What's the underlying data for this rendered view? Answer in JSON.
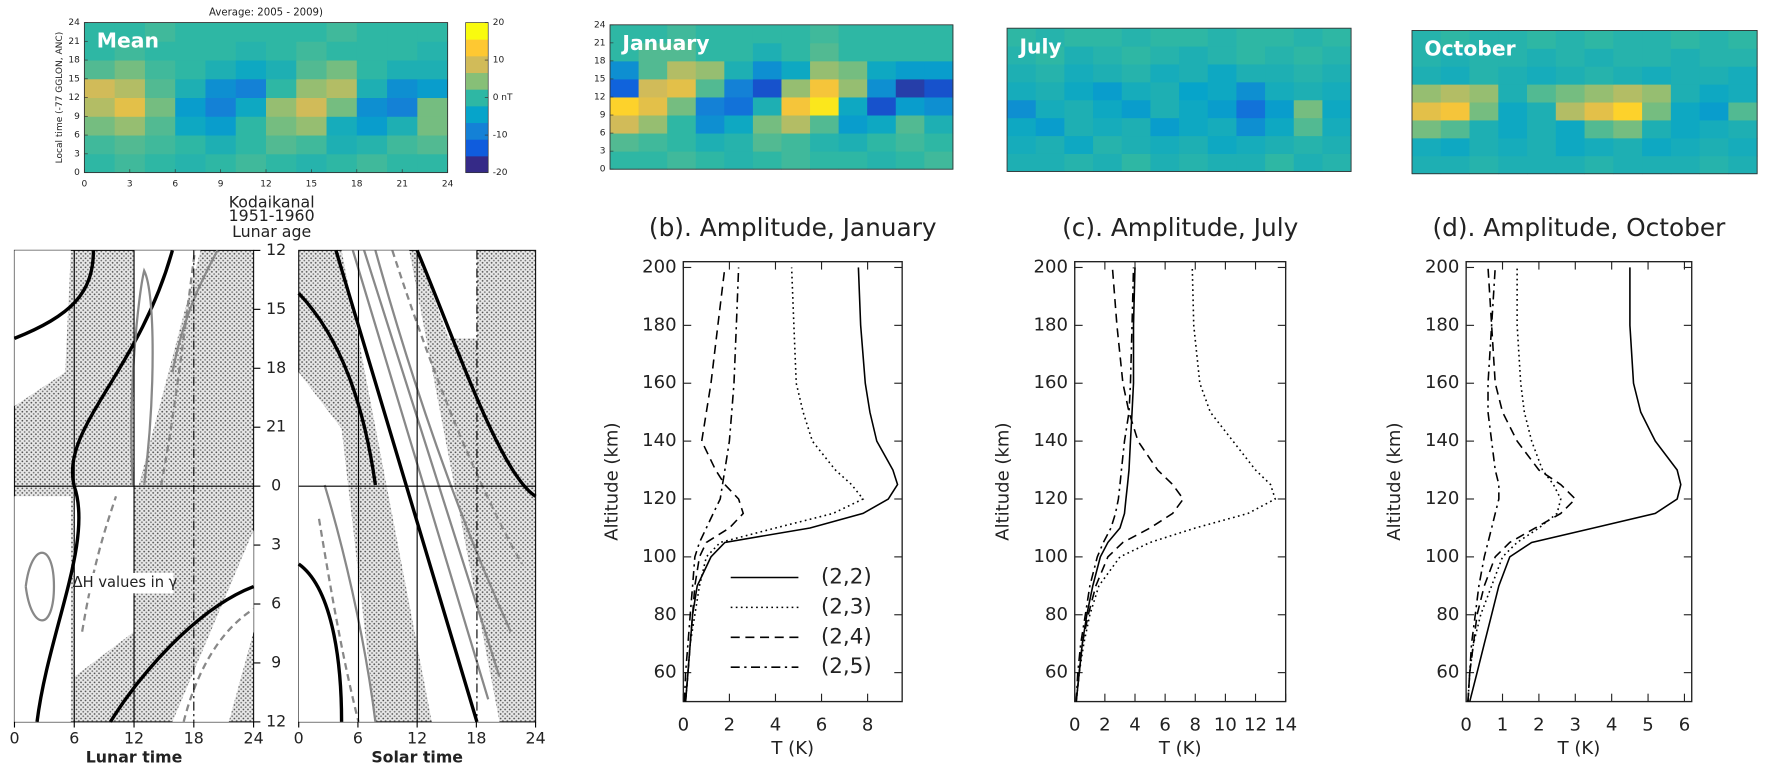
{
  "chart_data": [
    {
      "type": "heatmap",
      "title": "Average: 2005 - 2009)",
      "label": "Mean",
      "ylabel": "Local time (-77 GGLON, ANC)",
      "xlim": [
        0,
        24
      ],
      "ylim": [
        0,
        24
      ],
      "xticks": [
        0,
        3,
        6,
        9,
        12,
        15,
        18,
        21,
        24
      ],
      "yticks": [
        0,
        3,
        6,
        9,
        12,
        15,
        18,
        21,
        24
      ],
      "xbins": [
        0,
        2,
        4,
        6,
        8,
        10,
        12,
        14,
        16,
        18,
        20,
        22,
        24
      ],
      "ybins": [
        0,
        3,
        6,
        9,
        12,
        15,
        18,
        21,
        24
      ],
      "z": [
        [
          0,
          1,
          0,
          -1,
          0,
          1,
          0,
          -1,
          0,
          1,
          0,
          0
        ],
        [
          1,
          2,
          1,
          0,
          -2,
          0,
          2,
          1,
          -2,
          -1,
          1,
          2
        ],
        [
          4,
          6,
          2,
          -4,
          -6,
          0,
          4,
          6,
          -3,
          -6,
          -2,
          4
        ],
        [
          8,
          12,
          4,
          -6,
          -10,
          -4,
          6,
          10,
          4,
          -8,
          -10,
          4
        ],
        [
          10,
          8,
          2,
          -2,
          -8,
          -10,
          0,
          6,
          8,
          -2,
          -8,
          -6
        ],
        [
          2,
          4,
          1,
          0,
          -2,
          -4,
          -2,
          2,
          4,
          0,
          -2,
          -2
        ],
        [
          0,
          1,
          0,
          0,
          0,
          -1,
          0,
          1,
          0,
          0,
          0,
          -1
        ],
        [
          0,
          0,
          1,
          0,
          0,
          0,
          0,
          0,
          1,
          0,
          0,
          0
        ]
      ],
      "zlim": [
        -20,
        20
      ],
      "colorbar_ticks": [
        20,
        10,
        {
          "value": 0,
          "label": "0 nT"
        },
        -10,
        -20
      ],
      "colormap": [
        "#352a87",
        "#0f5cdd",
        "#1481d6",
        "#06a4ca",
        "#2eb7a4",
        "#87bf77",
        "#d1bb59",
        "#fec832",
        "#f9fb0e"
      ]
    },
    {
      "type": "heatmap",
      "label": "January",
      "xlim": [
        0,
        24
      ],
      "ylim": [
        0,
        24
      ],
      "yticks": [
        0,
        3,
        6,
        9,
        12,
        15,
        18,
        21,
        24
      ],
      "xbins": [
        0,
        2,
        4,
        6,
        8,
        10,
        12,
        14,
        16,
        18,
        20,
        22,
        24
      ],
      "ybins": [
        0,
        3,
        6,
        9,
        12,
        15,
        18,
        21,
        24
      ],
      "z": [
        [
          0,
          0,
          1,
          0,
          -1,
          0,
          1,
          0,
          0,
          -1,
          0,
          1
        ],
        [
          2,
          1,
          0,
          -2,
          -1,
          2,
          1,
          -1,
          -2,
          0,
          1,
          0
        ],
        [
          10,
          6,
          0,
          -8,
          -4,
          4,
          8,
          2,
          -6,
          -4,
          2,
          -2
        ],
        [
          16,
          12,
          4,
          -10,
          -12,
          -2,
          14,
          18,
          -4,
          -16,
          -6,
          -8
        ],
        [
          -14,
          10,
          12,
          2,
          -10,
          -16,
          6,
          14,
          6,
          -8,
          -18,
          -16
        ],
        [
          -8,
          2,
          8,
          6,
          -2,
          -8,
          -4,
          6,
          4,
          -4,
          -6,
          -6
        ],
        [
          0,
          2,
          2,
          0,
          0,
          -2,
          0,
          2,
          0,
          0,
          0,
          0
        ],
        [
          0,
          0,
          1,
          0,
          0,
          0,
          0,
          1,
          0,
          0,
          0,
          0
        ]
      ],
      "zlim": [
        -20,
        20
      ],
      "colormap": [
        "#352a87",
        "#0f5cdd",
        "#1481d6",
        "#06a4ca",
        "#2eb7a4",
        "#87bf77",
        "#d1bb59",
        "#fec832",
        "#f9fb0e"
      ]
    },
    {
      "type": "heatmap",
      "label": "July",
      "xlim": [
        0,
        24
      ],
      "ylim": [
        0,
        24
      ],
      "xbins": [
        0,
        2,
        4,
        6,
        8,
        10,
        12,
        14,
        16,
        18,
        20,
        22,
        24
      ],
      "ybins": [
        0,
        3,
        6,
        9,
        12,
        15,
        18,
        21,
        24
      ],
      "z": [
        [
          -2,
          -2,
          -1,
          -2,
          0,
          -2,
          -1,
          -2,
          -2,
          0,
          -2,
          -1
        ],
        [
          -3,
          -2,
          -4,
          -1,
          -2,
          -3,
          -2,
          -4,
          -3,
          -2,
          -1,
          -2
        ],
        [
          -4,
          -6,
          -2,
          -3,
          -2,
          -6,
          -4,
          -3,
          -8,
          -4,
          2,
          -3
        ],
        [
          -8,
          -3,
          -2,
          -4,
          -6,
          -2,
          -4,
          -6,
          -12,
          -6,
          4,
          -4
        ],
        [
          -3,
          -2,
          -4,
          -6,
          -3,
          -2,
          -5,
          -4,
          -8,
          -3,
          -2,
          -3
        ],
        [
          -2,
          -1,
          -3,
          -2,
          -1,
          -3,
          -2,
          -4,
          -2,
          -2,
          -1,
          -2
        ],
        [
          -1,
          0,
          -2,
          -1,
          0,
          -1,
          -2,
          -1,
          0,
          -1,
          0,
          -1
        ],
        [
          0,
          -1,
          0,
          0,
          -1,
          0,
          0,
          -1,
          0,
          0,
          -1,
          0
        ]
      ],
      "zlim": [
        -20,
        20
      ],
      "colormap": [
        "#352a87",
        "#0f5cdd",
        "#1481d6",
        "#06a4ca",
        "#2eb7a4",
        "#87bf77",
        "#d1bb59",
        "#fec832",
        "#f9fb0e"
      ]
    },
    {
      "type": "heatmap",
      "label": "October",
      "xlim": [
        0,
        24
      ],
      "ylim": [
        0,
        24
      ],
      "xbins": [
        0,
        2,
        4,
        6,
        8,
        10,
        12,
        14,
        16,
        18,
        20,
        22,
        24
      ],
      "ybins": [
        0,
        3,
        6,
        9,
        12,
        15,
        18,
        21,
        24
      ],
      "z": [
        [
          -2,
          -2,
          -1,
          -2,
          -2,
          -2,
          -1,
          -2,
          -2,
          -2,
          -1,
          -2
        ],
        [
          -3,
          -4,
          -2,
          -3,
          -2,
          -4,
          -3,
          -2,
          -4,
          -3,
          -2,
          -3
        ],
        [
          4,
          2,
          -2,
          -4,
          -2,
          -4,
          2,
          4,
          -2,
          -4,
          -3,
          -2
        ],
        [
          12,
          14,
          4,
          -4,
          -2,
          8,
          12,
          16,
          4,
          -4,
          -6,
          2
        ],
        [
          6,
          8,
          6,
          -2,
          2,
          4,
          6,
          8,
          6,
          -2,
          -4,
          -3
        ],
        [
          -2,
          -3,
          -1,
          -2,
          -3,
          -2,
          -1,
          -2,
          -3,
          -2,
          -2,
          -3
        ],
        [
          -1,
          -2,
          -1,
          -1,
          -2,
          -1,
          -2,
          -1,
          -1,
          -2,
          -1,
          -1
        ],
        [
          -1,
          0,
          -1,
          -1,
          0,
          -1,
          0,
          -1,
          -1,
          0,
          -1,
          0
        ]
      ],
      "zlim": [
        -20,
        20
      ],
      "colormap": [
        "#352a87",
        "#0f5cdd",
        "#1481d6",
        "#06a4ca",
        "#2eb7a4",
        "#87bf77",
        "#d1bb59",
        "#fec832",
        "#f9fb0e"
      ]
    },
    {
      "type": "diagram",
      "title": "Kodaikanal",
      "subtitle": "1951-1960",
      "lunar_age_label": "Lunar age",
      "lunar_age_ticks": [
        12,
        15,
        18,
        21,
        0,
        3,
        6,
        9,
        12
      ],
      "xlim": [
        0,
        24
      ],
      "xticks": [
        0,
        6,
        12,
        18,
        24
      ],
      "panels": [
        {
          "xlabel": "Lunar time"
        },
        {
          "xlabel": "Solar time"
        }
      ],
      "annotation": "ΔH values in γ"
    },
    {
      "type": "line",
      "title": "(b). Amplitude, January",
      "xlabel": "T (K)",
      "ylabel": "Altitude (km)",
      "legend": true,
      "xlim": [
        0,
        9.5
      ],
      "ylim": [
        50,
        202
      ],
      "xticks": [
        0,
        2,
        4,
        6,
        8
      ],
      "yticks": [
        60,
        80,
        100,
        120,
        140,
        160,
        180,
        200
      ],
      "altitudes": [
        50,
        60,
        70,
        80,
        90,
        100,
        105,
        110,
        115,
        120,
        125,
        130,
        140,
        150,
        160,
        180,
        200
      ],
      "series": [
        {
          "name": "(2,2)",
          "color": "#000000",
          "style": "solid",
          "values": [
            0.1,
            0.2,
            0.3,
            0.4,
            0.6,
            1.2,
            1.8,
            5.5,
            7.8,
            8.9,
            9.3,
            9.1,
            8.4,
            8.1,
            7.9,
            7.7,
            7.6
          ]
        },
        {
          "name": "(2,3)",
          "color": "#000000",
          "style": "dotted",
          "values": [
            0.1,
            0.2,
            0.3,
            0.5,
            0.7,
            1.0,
            1.6,
            4,
            6.5,
            7.8,
            7.3,
            6.6,
            5.6,
            5.2,
            4.9,
            4.8,
            4.7
          ]
        },
        {
          "name": "(2,4)",
          "color": "#000000",
          "style": "dashed",
          "values": [
            0.1,
            0.2,
            0.3,
            0.4,
            0.5,
            0.7,
            1.0,
            2.0,
            2.6,
            2.4,
            1.8,
            1.4,
            0.8,
            1.0,
            1.2,
            1.5,
            1.8
          ]
        },
        {
          "name": "(2,5)",
          "color": "#000000",
          "style": "dashdot",
          "values": [
            0.05,
            0.1,
            0.2,
            0.3,
            0.4,
            0.5,
            0.7,
            1.0,
            1.3,
            1.6,
            1.7,
            1.8,
            2.0,
            2.1,
            2.2,
            2.3,
            2.4
          ]
        }
      ]
    },
    {
      "type": "line",
      "title": "(c). Amplitude, July",
      "xlabel": "T (K)",
      "ylabel": "Altitude (km)",
      "xlim": [
        0,
        14
      ],
      "ylim": [
        50,
        202
      ],
      "xticks": [
        0,
        2,
        4,
        6,
        8,
        10,
        12,
        14
      ],
      "yticks": [
        60,
        80,
        100,
        120,
        140,
        160,
        180,
        200
      ],
      "altitudes": [
        50,
        60,
        70,
        80,
        90,
        100,
        105,
        110,
        115,
        120,
        125,
        130,
        140,
        150,
        160,
        180,
        200
      ],
      "series": [
        {
          "color": "#000000",
          "style": "solid",
          "values": [
            0.1,
            0.3,
            0.5,
            0.8,
            1.2,
            1.7,
            2.2,
            3.0,
            3.3,
            3.4,
            3.5,
            3.6,
            3.7,
            3.8,
            3.9,
            3.9,
            4.0
          ]
        },
        {
          "color": "#000000",
          "style": "dotted",
          "values": [
            0.1,
            0.3,
            0.6,
            1.0,
            1.6,
            3.0,
            5,
            8,
            11.5,
            13.3,
            13,
            12,
            10.5,
            9,
            8.3,
            7.9,
            7.8
          ]
        },
        {
          "color": "#000000",
          "style": "dashed",
          "values": [
            0.1,
            0.3,
            0.5,
            0.9,
            1.4,
            2.2,
            3.2,
            5.0,
            6.5,
            7.2,
            6.5,
            5.5,
            4.2,
            3.6,
            3.2,
            2.8,
            2.5
          ]
        },
        {
          "color": "#000000",
          "style": "dashdot",
          "values": [
            0.1,
            0.2,
            0.4,
            0.7,
            1.0,
            1.5,
            1.9,
            2.4,
            2.7,
            2.9,
            3.0,
            3.1,
            3.3,
            3.6,
            3.7,
            3.8,
            3.9
          ]
        }
      ]
    },
    {
      "type": "line",
      "title": "(d). Amplitude, October",
      "xlabel": "T (K)",
      "ylabel": "Altitude (km)",
      "xlim": [
        0,
        6.2
      ],
      "ylim": [
        50,
        202
      ],
      "xticks": [
        0,
        1,
        2,
        3,
        4,
        5,
        6
      ],
      "yticks": [
        60,
        80,
        100,
        120,
        140,
        160,
        180,
        200
      ],
      "altitudes": [
        50,
        60,
        70,
        80,
        90,
        100,
        105,
        110,
        115,
        120,
        125,
        130,
        140,
        150,
        160,
        180,
        200
      ],
      "series": [
        {
          "color": "#000000",
          "style": "solid",
          "values": [
            0.1,
            0.3,
            0.5,
            0.7,
            0.9,
            1.2,
            1.8,
            3.5,
            5.2,
            5.8,
            5.9,
            5.8,
            5.2,
            4.8,
            4.6,
            4.5,
            4.5
          ]
        },
        {
          "color": "#000000",
          "style": "dotted",
          "values": [
            0.05,
            0.1,
            0.2,
            0.4,
            0.7,
            1.0,
            1.4,
            2.0,
            2.5,
            2.6,
            2.4,
            2.1,
            1.8,
            1.6,
            1.5,
            1.4,
            1.4
          ]
        },
        {
          "color": "#000000",
          "style": "dashed",
          "values": [
            0.05,
            0.1,
            0.2,
            0.3,
            0.5,
            0.8,
            1.2,
            1.9,
            2.6,
            3.0,
            2.6,
            2.0,
            1.4,
            1.0,
            0.8,
            0.7,
            0.6
          ]
        },
        {
          "color": "#000000",
          "style": "dashdot",
          "values": [
            0.05,
            0.1,
            0.15,
            0.25,
            0.35,
            0.5,
            0.6,
            0.7,
            0.8,
            0.9,
            0.9,
            0.8,
            0.7,
            0.6,
            0.6,
            0.7,
            0.8
          ]
        }
      ]
    }
  ]
}
